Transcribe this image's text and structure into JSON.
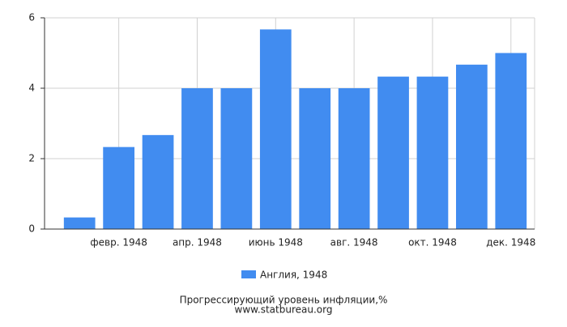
{
  "chart_data": {
    "type": "bar",
    "title": "Прогрессирующий уровень инфляции,%",
    "subtitle": "www.statbureau.org",
    "categories": [
      null,
      "февр. 1948",
      null,
      "апр. 1948",
      null,
      "июнь 1948",
      null,
      "авг. 1948",
      null,
      "окт. 1948",
      null,
      "дек. 1948"
    ],
    "series": [
      {
        "name": "Англия, 1948",
        "color": "#418cf0",
        "values": [
          0.33,
          2.33,
          2.67,
          4.0,
          4.0,
          5.67,
          4.0,
          4.0,
          4.33,
          4.33,
          4.67,
          5.0
        ]
      }
    ],
    "ylim": [
      0,
      6
    ],
    "yticks": [
      0,
      2,
      4,
      6
    ],
    "grid": true
  }
}
